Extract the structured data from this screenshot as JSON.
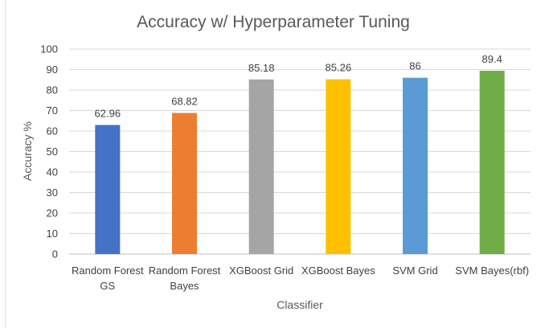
{
  "chart_data": {
    "type": "bar",
    "title": "Accuracy w/ Hyperparameter Tuning",
    "xlabel": "Classifier",
    "ylabel": "Accuracy %",
    "ylim": [
      0,
      100
    ],
    "ytick_step": 10,
    "grid": true,
    "legend": "none",
    "categories": [
      [
        "Random Forest",
        "GS"
      ],
      [
        "Random Forest",
        "Bayes"
      ],
      [
        "XGBoost Grid"
      ],
      [
        "XGBoost Bayes"
      ],
      [
        "SVM Grid"
      ],
      [
        "SVM Bayes(rbf)"
      ]
    ],
    "values": [
      62.96,
      68.82,
      85.18,
      85.26,
      86,
      89.4
    ],
    "value_labels": [
      "62.96",
      "68.82",
      "85.18",
      "85.26",
      "86",
      "89.4"
    ],
    "bar_colors": [
      "#4472c4",
      "#ed7d31",
      "#a5a5a5",
      "#ffc000",
      "#5b9bd5",
      "#70ad47"
    ]
  }
}
